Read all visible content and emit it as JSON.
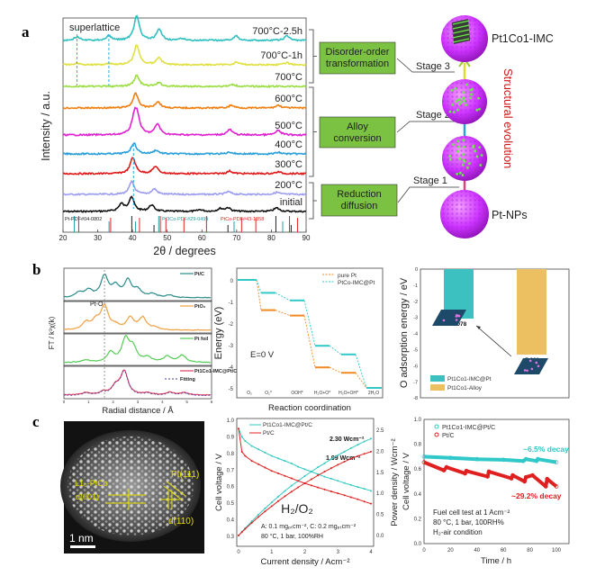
{
  "panel_labels": {
    "a": "a",
    "b": "b",
    "c": "c"
  },
  "diagram_a": {
    "boxes": [
      "Disorder-order transformation",
      "Alloy conversion",
      "Reduction diffusion"
    ],
    "box_lines": [
      [
        "Disorder-order",
        "transformation"
      ],
      [
        "Alloy",
        "conversion"
      ],
      [
        "Reduction",
        "diffusion"
      ]
    ],
    "stages": [
      "Stage 3",
      "Stage 2",
      "Stage 1"
    ],
    "top_label": "Pt1Co1-IMC",
    "bottom_label": "Pt-NPs",
    "evolution_label": "Structural evolution",
    "colors": {
      "box": "#7cc242",
      "sphere": "#cc33ff",
      "dots": "#66ee44",
      "evolution": "#d01818"
    }
  },
  "tem": {
    "labels": {
      "facet": "Pt(111)",
      "phase": "L1₀-PtCo",
      "d001": "d(001)",
      "d110": "d(110)",
      "scale": "1 nm"
    },
    "annotation_color": "#e8e000"
  },
  "chart_data": [
    {
      "type": "line",
      "title": "",
      "xlabel": "2θ / degrees",
      "ylabel": "Intensity / a.u.",
      "xlim": [
        20,
        90
      ],
      "xticks": [
        20,
        30,
        40,
        50,
        60,
        70,
        80,
        90
      ],
      "annotation": "superlattice",
      "superlattice_positions": [
        24,
        33.2
      ],
      "series": [
        {
          "name": "initial",
          "color": "#111111",
          "peaks": [
            [
              36.8,
              0.4
            ],
            [
              39.7,
              0.8
            ],
            [
              45.5,
              0.35
            ],
            [
              59.5,
              0.1
            ],
            [
              65.3,
              0.15
            ],
            [
              67.5,
              0.2
            ],
            [
              81.5,
              0.2
            ]
          ]
        },
        {
          "name": "200°C",
          "color": "#9b9bf0",
          "peaks": [
            [
              39.8,
              0.7
            ],
            [
              46.3,
              0.3
            ],
            [
              67.6,
              0.15
            ],
            [
              81.6,
              0.12
            ]
          ]
        },
        {
          "name": "300°C",
          "color": "#e01818",
          "peaks": [
            [
              40.1,
              0.9
            ],
            [
              46.6,
              0.4
            ],
            [
              68,
              0.15
            ],
            [
              82,
              0.1
            ]
          ]
        },
        {
          "name": "400°C",
          "color": "#2a9fd8",
          "peaks": [
            [
              40.4,
              0.6
            ],
            [
              46.8,
              0.2
            ],
            [
              68,
              0.1
            ],
            [
              82,
              0.08
            ]
          ]
        },
        {
          "name": "500°C",
          "color": "#e020d0",
          "peaks": [
            [
              40.6,
              1.0
            ],
            [
              41.4,
              0.8
            ],
            [
              47.2,
              0.6
            ],
            [
              68,
              0.3
            ],
            [
              82,
              0.25
            ]
          ]
        },
        {
          "name": "600°C",
          "color": "#f07f10",
          "peaks": [
            [
              40.9,
              0.8
            ],
            [
              47.3,
              0.35
            ],
            [
              68.5,
              0.15
            ],
            [
              82,
              0.15
            ]
          ]
        },
        {
          "name": "700°C",
          "color": "#99dd40",
          "peaks": [
            [
              41.2,
              0.6
            ],
            [
              47.6,
              0.2
            ],
            [
              69,
              0.1
            ]
          ]
        },
        {
          "name": "700°C-1h",
          "color": "#e0e040",
          "peaks": [
            [
              24,
              0.08
            ],
            [
              33.2,
              0.08
            ],
            [
              41.2,
              1.1
            ],
            [
              47.6,
              0.4
            ],
            [
              70,
              0.15
            ],
            [
              84.5,
              0.12
            ]
          ]
        },
        {
          "name": "700°C-2.5h",
          "color": "#30c0c0",
          "peaks": [
            [
              24,
              0.2
            ],
            [
              33.2,
              0.25
            ],
            [
              41.2,
              1.4
            ],
            [
              47.7,
              0.6
            ],
            [
              54.3,
              0.1
            ],
            [
              69.8,
              0.25
            ],
            [
              84.5,
              0.25
            ]
          ]
        }
      ],
      "reference_cards": [
        {
          "name": "Pt-PDF#04-0802",
          "color": "#222222",
          "positions": [
            39.8,
            46.2,
            67.5,
            81.3,
            85.7
          ]
        },
        {
          "name": "Pt3Co-PDF#29-0499",
          "color": "#20a0a0",
          "positions": [
            23.0,
            33.0,
            40.6,
            47.3,
            69.0,
            83.0
          ]
        },
        {
          "name": "PtCo-PDF#43-1358",
          "color": "#e02020",
          "positions": [
            24.0,
            33.2,
            41.5,
            47.5,
            49.1,
            54.3,
            60.8,
            70.9,
            75.0,
            84.7,
            87.0
          ]
        }
      ]
    },
    {
      "type": "line",
      "xlabel": "Radial distance / Å",
      "ylabel": "FT / k³χ(k)",
      "xlim": [
        0,
        6
      ],
      "xticks": [
        0,
        1,
        2,
        3,
        4,
        5,
        6
      ],
      "annotation": "Pt-O",
      "series": [
        {
          "name": "Pt/C",
          "color": "#2a8a8a",
          "peaks": [
            [
              0.6,
              0.2
            ],
            [
              1.0,
              0.3
            ],
            [
              1.65,
              0.9
            ],
            [
              2.1,
              0.45
            ],
            [
              2.6,
              0.7
            ],
            [
              3.0,
              0.3
            ],
            [
              3.6,
              0.15
            ],
            [
              4.3,
              0.1
            ]
          ]
        },
        {
          "name": "PtO₂",
          "color": "#f0a040",
          "peaks": [
            [
              0.9,
              0.3
            ],
            [
              1.3,
              0.35
            ],
            [
              1.65,
              1.0
            ],
            [
              2.1,
              0.15
            ],
            [
              2.7,
              0.5
            ],
            [
              3.2,
              0.5
            ],
            [
              3.7,
              0.1
            ]
          ]
        },
        {
          "name": "Pt foil",
          "color": "#55cc55",
          "peaks": [
            [
              0.9,
              0.1
            ],
            [
              1.9,
              0.4
            ],
            [
              2.5,
              0.95
            ],
            [
              2.8,
              0.6
            ],
            [
              3.4,
              0.2
            ],
            [
              4.2,
              0.25
            ],
            [
              4.8,
              0.3
            ]
          ]
        },
        {
          "name": "Pt1Co1-IMC@Pt/C",
          "color": "#e04060",
          "peaks": [
            [
              0.9,
              0.1
            ],
            [
              1.6,
              0.12
            ],
            [
              2.1,
              0.35
            ],
            [
              2.45,
              1.0
            ],
            [
              3.4,
              0.08
            ],
            [
              4.3,
              0.12
            ],
            [
              4.9,
              0.1
            ]
          ]
        },
        {
          "name": "Fitting",
          "color": "#4040a0"
        }
      ]
    },
    {
      "type": "line",
      "xlabel": "Reaction coordination",
      "ylabel": "Energy (eV)",
      "categories": [
        "O₂",
        "O₂*",
        "OOH*",
        "H₂O+O*",
        "H₂O+OH*",
        "2H₂O"
      ],
      "ylim": [
        -5.3,
        0.3
      ],
      "yticks": [
        0,
        -1,
        -2,
        -3,
        -4,
        -5
      ],
      "annotation": "E=0 V",
      "series": [
        {
          "name": "pure Pt",
          "color": "#f08a20",
          "values": [
            0,
            -1.4,
            -1.65,
            -4.05,
            -4.3,
            -5.0
          ]
        },
        {
          "name": "PtCo-IMC@Pt",
          "color": "#30c8c8",
          "values": [
            0,
            -0.6,
            -0.95,
            -3.05,
            -3.45,
            -5.0
          ]
        }
      ]
    },
    {
      "type": "bar",
      "ylabel": "O adsorption energy / eV",
      "ylim": [
        -8,
        0
      ],
      "yticks": [
        0,
        -1,
        -2,
        -3,
        -4,
        -5,
        -6,
        -7,
        -8
      ],
      "categories": [
        "Pt1Co1-IMC@Pt",
        "Pt1Co1-Alloy"
      ],
      "values": [
        -3.078,
        -5.311
      ],
      "value_labels": [
        "-3.078",
        "-5.311"
      ],
      "colors": [
        "#3cc0c0",
        "#ecc060"
      ],
      "legend": "bottom-left"
    },
    {
      "type": "line",
      "xlabel": "Current density / Acm⁻²",
      "ylabel": "Cell voltage / V",
      "y2label": "Power density / Wcm⁻²",
      "xlim": [
        0,
        4
      ],
      "ylim": [
        0.27,
        1.0
      ],
      "y2lim": [
        -0.12,
        2.78
      ],
      "xticks": [
        0,
        1,
        2,
        3,
        4
      ],
      "yticks": [
        0.3,
        0.4,
        0.5,
        0.6,
        0.7,
        0.8,
        0.9,
        1.0
      ],
      "y2ticks": [
        0.0,
        0.5,
        1.0,
        1.5,
        2.0,
        2.5
      ],
      "x": [
        0,
        0.1,
        0.2,
        0.4,
        0.6,
        0.8,
        1.0,
        1.2,
        1.4,
        1.6,
        1.8,
        2.0,
        2.2,
        2.4,
        2.6,
        2.8,
        3.0,
        3.2,
        3.4,
        3.6,
        3.8,
        4.0
      ],
      "series": [
        {
          "name": "Pt1Co1-IMC@Pt/C",
          "color": "#30c8c0",
          "voltage": [
            0.95,
            0.9,
            0.875,
            0.845,
            0.825,
            0.805,
            0.785,
            0.77,
            0.755,
            0.74,
            0.72,
            0.705,
            0.69,
            0.675,
            0.66,
            0.648,
            0.635,
            0.622,
            0.61,
            0.598,
            0.587,
            0.575
          ]
        },
        {
          "name": "Pt/C",
          "color": "#e02020",
          "voltage": [
            0.95,
            0.81,
            0.785,
            0.755,
            0.735,
            0.715,
            0.695,
            0.68,
            0.665,
            0.65,
            0.635,
            0.62,
            0.607,
            0.595,
            0.583,
            0.571,
            0.56,
            0.548,
            0.536,
            0.524,
            0.51,
            0.4975
          ]
        }
      ],
      "annotations": {
        "peak1": "2.30 Wcm⁻²",
        "peak2": "1.99 Wcm⁻²",
        "gas": "H₂/O₂",
        "loading": "A: 0.1 mgₚₜcm⁻², C: 0.2 mgₚₜcm⁻²",
        "conditions": "80 °C, 1 bar, 100%RH"
      }
    },
    {
      "type": "scatter",
      "xlabel": "Time / h",
      "ylabel": "Cell voltage / V",
      "xlim": [
        0,
        100
      ],
      "ylim": [
        0,
        1.0
      ],
      "xticks": [
        0,
        20,
        40,
        60,
        80,
        100
      ],
      "yticks": [
        "0.0",
        "0.2",
        "0.4",
        "0.6",
        "0.8",
        "1.0"
      ],
      "series": [
        {
          "name": "Pt1Co1-IMC@Pt/C",
          "color": "#30c8c8",
          "points": [
            [
              0,
              0.7
            ],
            [
              20,
              0.69
            ],
            [
              40,
              0.68
            ],
            [
              60,
              0.675
            ],
            [
              75,
              0.665
            ],
            [
              77,
              0.68
            ],
            [
              85,
              0.665
            ],
            [
              86,
              0.68
            ],
            [
              100,
              0.655
            ]
          ]
        },
        {
          "name": "Pt/C",
          "color": "#e02020",
          "points": [
            [
              0,
              0.655
            ],
            [
              15,
              0.59
            ],
            [
              17,
              0.615
            ],
            [
              31,
              0.565
            ],
            [
              32,
              0.585
            ],
            [
              48,
              0.54
            ],
            [
              49,
              0.58
            ],
            [
              66,
              0.525
            ],
            [
              67,
              0.55
            ],
            [
              76,
              0.5
            ],
            [
              77,
              0.535
            ],
            [
              82,
              0.55
            ],
            [
              92,
              0.46
            ],
            [
              93,
              0.52
            ],
            [
              100,
              0.46
            ]
          ]
        }
      ],
      "annotations": {
        "decay1": "~6.5% decay",
        "decay2": "~29.2% decay",
        "test1": "Fuel cell test at 1 Acm⁻²",
        "test2": "80 °C, 1 bar, 100RH%",
        "test3": "H₂-air condition"
      }
    }
  ]
}
